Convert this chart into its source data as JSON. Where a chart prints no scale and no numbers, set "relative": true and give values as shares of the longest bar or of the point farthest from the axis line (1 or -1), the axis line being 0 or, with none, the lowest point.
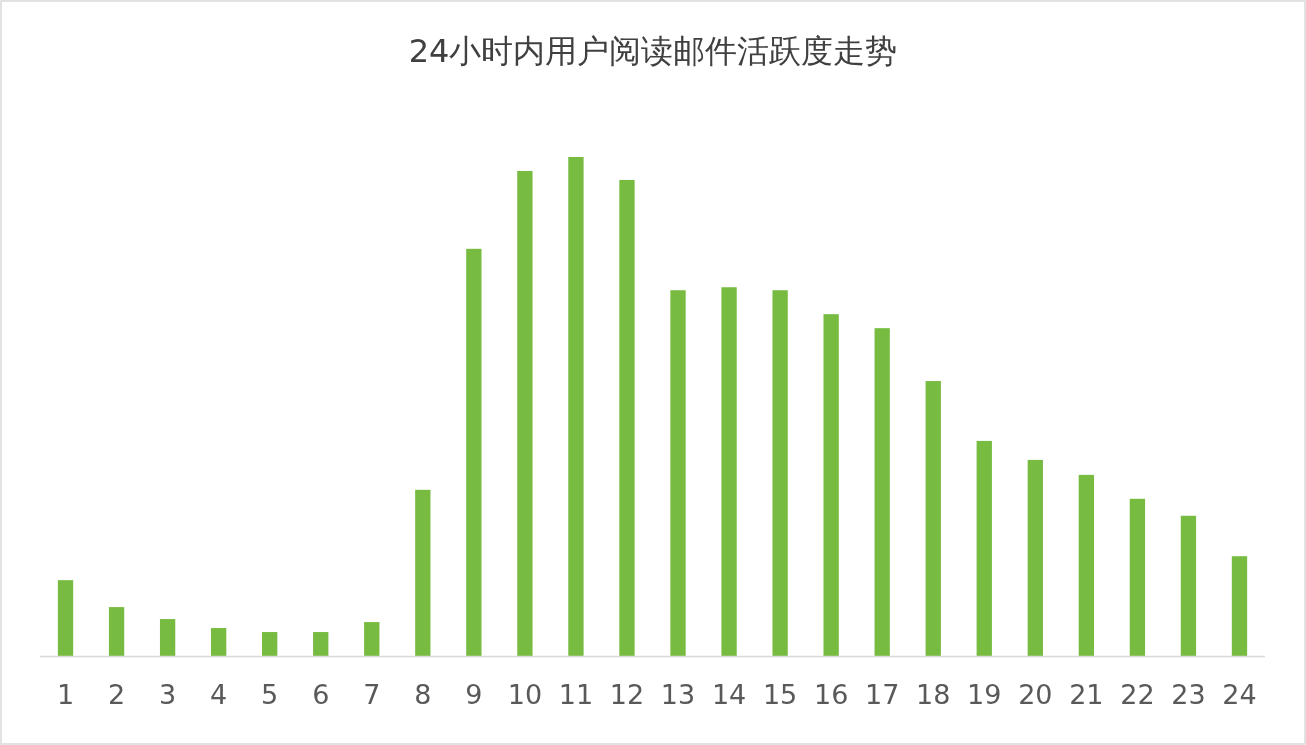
{
  "chart_data": {
    "type": "bar",
    "title": "24小时内用户阅读邮件活跃度走势",
    "relative": true,
    "color": "#77bc41",
    "categories": [
      "1",
      "2",
      "3",
      "4",
      "5",
      "6",
      "7",
      "8",
      "9",
      "10",
      "11",
      "12",
      "13",
      "14",
      "15",
      "16",
      "17",
      "18",
      "19",
      "20",
      "21",
      "22",
      "23",
      "24"
    ],
    "values": [
      0.152,
      0.098,
      0.074,
      0.056,
      0.048,
      0.048,
      0.068,
      0.333,
      0.816,
      0.972,
      1,
      0.954,
      0.733,
      0.739,
      0.733,
      0.685,
      0.657,
      0.551,
      0.431,
      0.393,
      0.363,
      0.315,
      0.281,
      0.2
    ]
  }
}
